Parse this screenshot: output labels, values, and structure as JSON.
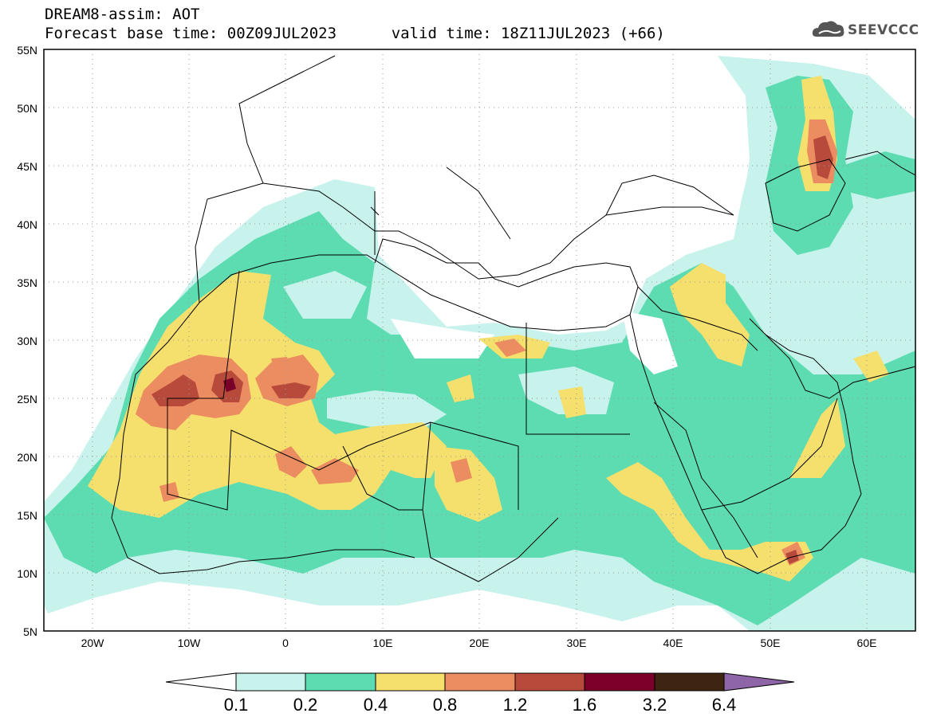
{
  "header": {
    "model_line": "DREAM8-assim: AOT",
    "base_time_label": "Forecast base time: 00Z09JUL2023",
    "valid_time_label": "valid time: 18Z11JUL2023 (+66)"
  },
  "logo": {
    "text": "SEEVCCC",
    "icon": "cloud-logo-icon"
  },
  "map": {
    "projection": "equirectangular",
    "lon_range": [
      -25,
      65
    ],
    "lat_range": [
      5,
      55
    ],
    "gridlines": "dotted",
    "lat_ticks": [
      "5N",
      "10N",
      "15N",
      "20N",
      "25N",
      "30N",
      "35N",
      "40N",
      "45N",
      "50N",
      "55N"
    ],
    "lon_ticks": [
      "20W",
      "10W",
      "0",
      "10E",
      "20E",
      "30E",
      "40E",
      "50E",
      "60E"
    ]
  },
  "colorbar": {
    "thresholds": [
      "0.1",
      "0.2",
      "0.4",
      "0.8",
      "1.2",
      "1.6",
      "3.2",
      "6.4"
    ],
    "colors": [
      "#ffffff",
      "#c8f2ec",
      "#5ddcb1",
      "#f5e06e",
      "#eb8d60",
      "#b84a3c",
      "#7a0029",
      "#3d2512",
      "#8e65a8"
    ]
  },
  "colors": {
    "c01": "#c8f2ec",
    "c02": "#5ddcb1",
    "c04": "#f5e06e",
    "c08": "#eb8d60",
    "c12": "#b84a3c",
    "c16": "#7a0029",
    "border": "#000000"
  }
}
